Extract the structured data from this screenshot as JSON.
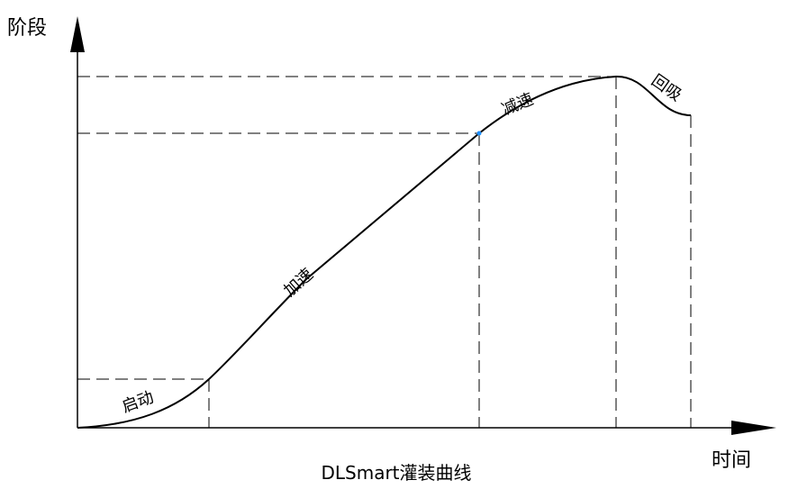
{
  "diagram": {
    "title": "DLSmart灌装曲线",
    "y_axis_label": "阶段",
    "x_axis_label": "时间",
    "phases": [
      {
        "label": "启动"
      },
      {
        "label": "加速"
      },
      {
        "label": "减速"
      },
      {
        "label": "回吸"
      }
    ],
    "colors": {
      "line": "#000000",
      "marker": "#1e90ff"
    }
  }
}
